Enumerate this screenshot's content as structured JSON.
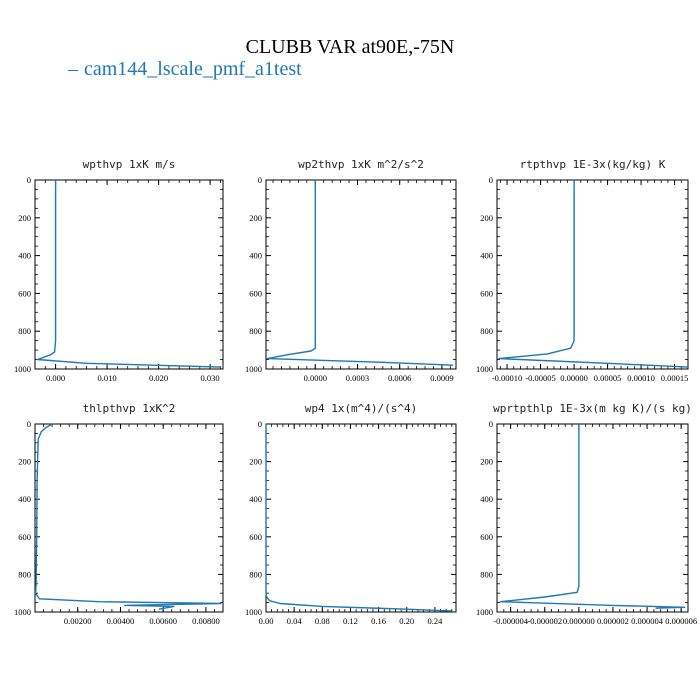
{
  "figure": {
    "title": "CLUBB VAR at90E,-75N",
    "legend_label": "cam144_lscale_pmf_a1test",
    "line_color": "#1f77b4"
  },
  "chart_data": [
    {
      "type": "line",
      "title": "wpthvp   1xK m/s",
      "xlim": [
        -0.004,
        0.0325
      ],
      "ylim": [
        1000,
        0
      ],
      "xtick_values": [
        0.0,
        0.01,
        0.02,
        0.03
      ],
      "xtick_labels": [
        "0.000",
        "0.010",
        "0.020",
        "0.030"
      ],
      "ytick_values": [
        0,
        200,
        400,
        600,
        800,
        1000
      ],
      "ytick_labels": [
        "0",
        "200",
        "400",
        "600",
        "800",
        "1000"
      ],
      "series": [
        {
          "x": [
            0.0,
            0.0,
            0.0,
            0.0,
            -0.0002,
            -0.001,
            -0.0035,
            0.006,
            0.032
          ],
          "y": [
            0,
            300,
            600,
            850,
            910,
            925,
            950,
            970,
            990
          ]
        }
      ]
    },
    {
      "type": "line",
      "title": "wp2thvp   1xK m^2/s^2",
      "xlim": [
        -0.00035,
        0.001
      ],
      "ylim": [
        1000,
        0
      ],
      "xtick_values": [
        0.0,
        0.0003,
        0.0006,
        0.0009
      ],
      "xtick_labels": [
        "0.0000",
        "0.0003",
        "0.0006",
        "0.0009"
      ],
      "ytick_values": [
        0,
        200,
        400,
        600,
        800,
        1000
      ],
      "ytick_labels": [
        "0",
        "200",
        "400",
        "600",
        "800",
        "1000"
      ],
      "series": [
        {
          "x": [
            0.0,
            0.0,
            0.0,
            0.0,
            -3e-05,
            -0.0002,
            -0.00034,
            0.0005,
            0.00098
          ],
          "y": [
            0,
            300,
            600,
            890,
            905,
            925,
            945,
            965,
            980
          ]
        }
      ]
    },
    {
      "type": "line",
      "title": "rtpthvp   1E-3x(kg/kg) K",
      "xlim": [
        -0.000115,
        0.00017
      ],
      "ylim": [
        1000,
        0
      ],
      "xtick_values": [
        -0.0001,
        -5e-05,
        0.0,
        5e-05,
        0.0001,
        0.00015
      ],
      "xtick_labels": [
        "-0.00010",
        "-0.00005",
        "0.00000",
        "0.00005",
        "0.00010",
        "0.00015"
      ],
      "ytick_values": [
        0,
        200,
        400,
        600,
        800,
        1000
      ],
      "ytick_labels": [
        "0",
        "200",
        "400",
        "600",
        "800",
        "1000"
      ],
      "series": [
        {
          "x": [
            0.0,
            0.0,
            0.0,
            0.0,
            -5e-06,
            -4e-05,
            -0.000112,
            5e-05,
            0.00017
          ],
          "y": [
            0,
            300,
            600,
            850,
            890,
            920,
            945,
            970,
            990
          ]
        }
      ]
    },
    {
      "type": "line",
      "title": "thlpthvp   1xK^2",
      "xlim": [
        0.0,
        0.0088
      ],
      "ylim": [
        1000,
        0
      ],
      "xtick_values": [
        0.002,
        0.004,
        0.006,
        0.008
      ],
      "xtick_labels": [
        "0.00200",
        "0.00400",
        "0.00600",
        "0.00800"
      ],
      "ytick_values": [
        0,
        200,
        400,
        600,
        800,
        1000
      ],
      "ytick_labels": [
        "0",
        "200",
        "400",
        "600",
        "800",
        "1000"
      ],
      "series": [
        {
          "x": [
            0.0008,
            0.0005,
            0.0003,
            0.00015,
            0.0001,
            8e-05,
            5e-05,
            3e-05,
            0.0002,
            0.003,
            0.0087,
            0.0042,
            0.0065,
            0.0058
          ],
          "y": [
            0,
            20,
            40,
            80,
            300,
            600,
            850,
            900,
            930,
            945,
            955,
            965,
            970,
            985
          ]
        }
      ]
    },
    {
      "type": "line",
      "title": "wp4   1x(m^4)/(s^4)",
      "xlim": [
        0.0,
        0.27
      ],
      "ylim": [
        1000,
        0
      ],
      "xtick_values": [
        0.0,
        0.04,
        0.08,
        0.12,
        0.16,
        0.2,
        0.24
      ],
      "xtick_labels": [
        "0.00",
        "0.04",
        "0.08",
        "0.12",
        "0.16",
        "0.20",
        "0.24"
      ],
      "ytick_values": [
        0,
        200,
        400,
        600,
        800,
        1000
      ],
      "ytick_labels": [
        "0",
        "200",
        "400",
        "600",
        "800",
        "1000"
      ],
      "series": [
        {
          "x": [
            0.0,
            0.0,
            0.0,
            0.0,
            0.001,
            0.005,
            0.02,
            0.08,
            0.2,
            0.265
          ],
          "y": [
            0,
            300,
            600,
            900,
            920,
            940,
            955,
            970,
            985,
            995
          ]
        }
      ]
    },
    {
      "type": "line",
      "title": "wprtpthlp   1E-3x(m kg K)/(s kg)",
      "xlim": [
        -4.8e-06,
        6.4e-06
      ],
      "ylim": [
        1000,
        0
      ],
      "xtick_values": [
        -4e-06,
        -2e-06,
        0.0,
        2e-06,
        4e-06,
        6e-06
      ],
      "xtick_labels": [
        "-0.000004",
        "-0.000002",
        "0.000000",
        "0.000002",
        "0.000004",
        "0.000006"
      ],
      "ytick_values": [
        0,
        200,
        400,
        600,
        800,
        1000
      ],
      "ytick_labels": [
        "0",
        "200",
        "400",
        "600",
        "800",
        "1000"
      ],
      "series": [
        {
          "x": [
            0.0,
            0.0,
            0.0,
            0.0,
            -1e-07,
            -2e-06,
            -4.6e-06,
            2e-06,
            6.2e-06,
            4.5e-06
          ],
          "y": [
            0,
            300,
            600,
            860,
            895,
            920,
            945,
            965,
            975,
            980
          ]
        }
      ]
    }
  ]
}
